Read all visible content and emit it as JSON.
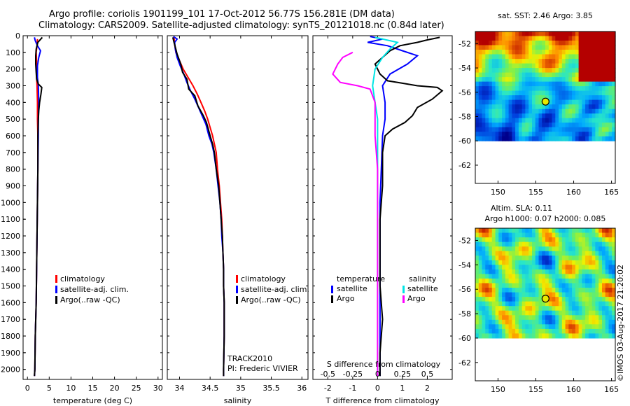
{
  "header": {
    "line1": "Argo profile: coriolis 1901199_101 17-Oct-2012 56.77S 156.281E (DM data)",
    "line2": "Climatology: CARS2009. Satellite-adjusted climatology: synTS_20121018.nc (0.84d later)"
  },
  "colors": {
    "clim": "#ff0000",
    "sat": "#0000ff",
    "argo": "#000000",
    "sat_s": "#00e5e5",
    "argo_s": "#ff00ff"
  },
  "chart_data": [
    {
      "id": "temperature",
      "type": "line",
      "xlabel": "temperature (deg C)",
      "ylabel": "",
      "xlim": [
        -1,
        31
      ],
      "ylim": [
        2060,
        0
      ],
      "xticks": [
        0,
        5,
        10,
        15,
        20,
        25,
        30
      ],
      "yticks": [
        0,
        100,
        200,
        300,
        400,
        500,
        600,
        700,
        800,
        900,
        1000,
        1100,
        1200,
        1300,
        1400,
        1500,
        1600,
        1700,
        1800,
        1900,
        2000
      ],
      "legend": {
        "entries": [
          "climatology",
          "satellite-adj. clim.",
          "Argo(..raw -QC)"
        ]
      },
      "series": [
        {
          "name": "climatology",
          "color": "clim",
          "points": [
            [
              2.3,
              20
            ],
            [
              2.2,
              60
            ],
            [
              2.0,
              100
            ],
            [
              2.1,
              150
            ],
            [
              2.0,
              200
            ],
            [
              2.1,
              250
            ],
            [
              2.2,
              300
            ],
            [
              2.3,
              400
            ],
            [
              2.3,
              500
            ],
            [
              2.4,
              600
            ],
            [
              2.4,
              800
            ],
            [
              2.3,
              1000
            ],
            [
              2.2,
              1200
            ],
            [
              2.1,
              1400
            ],
            [
              2.0,
              1600
            ],
            [
              1.8,
              1800
            ],
            [
              1.7,
              2000
            ],
            [
              1.6,
              2040
            ]
          ]
        },
        {
          "name": "satellite-adj. clim.",
          "color": "sat",
          "points": [
            [
              1.6,
              10
            ],
            [
              1.8,
              30
            ],
            [
              2.3,
              60
            ],
            [
              3.0,
              90
            ],
            [
              2.6,
              130
            ],
            [
              2.3,
              180
            ],
            [
              2.3,
              250
            ],
            [
              2.5,
              300
            ],
            [
              2.6,
              400
            ],
            [
              2.5,
              500
            ],
            [
              2.5,
              600
            ],
            [
              2.4,
              800
            ],
            [
              2.3,
              1000
            ],
            [
              2.2,
              1200
            ],
            [
              2.1,
              1400
            ],
            [
              2.0,
              1600
            ],
            [
              1.8,
              1800
            ],
            [
              1.7,
              2000
            ],
            [
              1.6,
              2040
            ]
          ]
        },
        {
          "name": "Argo",
          "color": "argo",
          "points": [
            [
              3.4,
              10
            ],
            [
              2.4,
              40
            ],
            [
              2.0,
              80
            ],
            [
              1.9,
              120
            ],
            [
              1.9,
              170
            ],
            [
              2.0,
              220
            ],
            [
              2.1,
              260
            ],
            [
              2.5,
              290
            ],
            [
              3.3,
              310
            ],
            [
              3.1,
              350
            ],
            [
              2.8,
              400
            ],
            [
              2.6,
              450
            ],
            [
              2.5,
              500
            ],
            [
              2.4,
              600
            ],
            [
              2.4,
              800
            ],
            [
              2.3,
              1000
            ],
            [
              2.2,
              1200
            ],
            [
              2.1,
              1400
            ],
            [
              2.0,
              1600
            ],
            [
              1.8,
              1800
            ],
            [
              1.7,
              2000
            ],
            [
              1.6,
              2040
            ]
          ]
        }
      ]
    },
    {
      "id": "salinity",
      "type": "line",
      "xlabel": "salinity",
      "ylabel": "",
      "xlim": [
        33.8,
        36.1
      ],
      "ylim": [
        2060,
        0
      ],
      "xticks": [
        34,
        34.5,
        35,
        35.5,
        36
      ],
      "xtick_labels": [
        "34",
        "34.5",
        "35",
        "35.5",
        "36"
      ],
      "legend": {
        "entries": [
          "climatology",
          "satellite-adj. clim.",
          "Argo(..raw -QC)"
        ]
      },
      "annotation": [
        "TRACK2010",
        "PI: Frederic VIVIER"
      ],
      "series": [
        {
          "name": "climatology",
          "color": "clim",
          "points": [
            [
              33.91,
              10
            ],
            [
              33.92,
              50
            ],
            [
              33.94,
              100
            ],
            [
              34.0,
              150
            ],
            [
              34.06,
              200
            ],
            [
              34.14,
              250
            ],
            [
              34.22,
              300
            ],
            [
              34.29,
              350
            ],
            [
              34.35,
              400
            ],
            [
              34.41,
              450
            ],
            [
              34.46,
              500
            ],
            [
              34.5,
              550
            ],
            [
              34.54,
              600
            ],
            [
              34.57,
              650
            ],
            [
              34.6,
              700
            ],
            [
              34.62,
              800
            ],
            [
              34.65,
              900
            ],
            [
              34.67,
              1000
            ],
            [
              34.69,
              1100
            ],
            [
              34.7,
              1200
            ],
            [
              34.71,
              1300
            ],
            [
              34.72,
              1400
            ],
            [
              34.72,
              1500
            ],
            [
              34.73,
              1600
            ],
            [
              34.73,
              1800
            ],
            [
              34.72,
              2000
            ],
            [
              34.72,
              2040
            ]
          ]
        },
        {
          "name": "satellite-adj. clim.",
          "color": "sat",
          "points": [
            [
              33.9,
              5
            ],
            [
              33.96,
              20
            ],
            [
              33.92,
              40
            ],
            [
              33.93,
              80
            ],
            [
              33.96,
              130
            ],
            [
              34.01,
              180
            ],
            [
              34.07,
              230
            ],
            [
              34.12,
              280
            ],
            [
              34.18,
              330
            ],
            [
              34.25,
              380
            ],
            [
              34.31,
              430
            ],
            [
              34.37,
              480
            ],
            [
              34.43,
              530
            ],
            [
              34.48,
              600
            ],
            [
              34.53,
              650
            ],
            [
              34.56,
              700
            ],
            [
              34.6,
              800
            ],
            [
              34.63,
              900
            ],
            [
              34.66,
              1000
            ],
            [
              34.68,
              1100
            ],
            [
              34.69,
              1200
            ],
            [
              34.71,
              1300
            ],
            [
              34.72,
              1400
            ],
            [
              34.72,
              1500
            ],
            [
              34.73,
              1600
            ],
            [
              34.73,
              1800
            ],
            [
              34.72,
              2000
            ],
            [
              34.72,
              2040
            ]
          ]
        },
        {
          "name": "Argo",
          "color": "argo",
          "points": [
            [
              33.89,
              10
            ],
            [
              33.91,
              40
            ],
            [
              33.94,
              80
            ],
            [
              33.96,
              110
            ],
            [
              34.02,
              170
            ],
            [
              34.05,
              220
            ],
            [
              34.12,
              260
            ],
            [
              34.15,
              320
            ],
            [
              34.25,
              360
            ],
            [
              34.3,
              420
            ],
            [
              34.33,
              440
            ],
            [
              34.39,
              480
            ],
            [
              34.44,
              520
            ],
            [
              34.47,
              560
            ],
            [
              34.5,
              600
            ],
            [
              34.54,
              650
            ],
            [
              34.57,
              700
            ],
            [
              34.6,
              800
            ],
            [
              34.64,
              900
            ],
            [
              34.66,
              1000
            ],
            [
              34.68,
              1100
            ],
            [
              34.7,
              1200
            ],
            [
              34.71,
              1300
            ],
            [
              34.72,
              1400
            ],
            [
              34.72,
              1500
            ],
            [
              34.73,
              1600
            ],
            [
              34.73,
              1800
            ],
            [
              34.72,
              2000
            ],
            [
              34.72,
              2040
            ]
          ]
        }
      ]
    },
    {
      "id": "difference",
      "type": "line",
      "xlabel": "T difference from climatology",
      "xlabel2": "S difference from climatology",
      "xlim": [
        -2.6,
        3
      ],
      "ylim": [
        2060,
        0
      ],
      "xticks": [
        -2,
        -1,
        0,
        1,
        2
      ],
      "xticks2": [
        -2,
        -1,
        0,
        1,
        2
      ],
      "xtick2_labels": [
        "-0.5",
        "-0.25",
        "0",
        "0.25",
        "0.5"
      ],
      "legend": {
        "temperature": [
          "temperature",
          "satellite",
          "Argo"
        ],
        "salinity": [
          "salinity",
          "satellite",
          "Argo"
        ]
      },
      "series": [
        {
          "name": "satellite",
          "group": "temperature",
          "color": "sat",
          "points": [
            [
              -0.3,
              5
            ],
            [
              0.2,
              20
            ],
            [
              -0.4,
              40
            ],
            [
              0.4,
              60
            ],
            [
              1.0,
              90
            ],
            [
              1.6,
              120
            ],
            [
              1.2,
              170
            ],
            [
              0.5,
              230
            ],
            [
              0.2,
              300
            ],
            [
              0.3,
              400
            ],
            [
              0.3,
              500
            ],
            [
              0.2,
              600
            ],
            [
              0.15,
              800
            ],
            [
              0.1,
              1000
            ],
            [
              0.1,
              1200
            ],
            [
              0.1,
              1400
            ],
            [
              0.1,
              1600
            ],
            [
              0.1,
              1800
            ],
            [
              0.1,
              2000
            ],
            [
              0.1,
              2040
            ]
          ]
        },
        {
          "name": "Argo",
          "group": "temperature",
          "color": "argo",
          "points": [
            [
              2.5,
              10
            ],
            [
              2.0,
              25
            ],
            [
              1.6,
              40
            ],
            [
              0.9,
              60
            ],
            [
              0.5,
              90
            ],
            [
              0.2,
              130
            ],
            [
              -0.1,
              170
            ],
            [
              0.1,
              230
            ],
            [
              0.4,
              270
            ],
            [
              1.0,
              285
            ],
            [
              1.6,
              300
            ],
            [
              2.4,
              310
            ],
            [
              2.6,
              330
            ],
            [
              2.2,
              380
            ],
            [
              1.6,
              430
            ],
            [
              1.4,
              480
            ],
            [
              1.1,
              520
            ],
            [
              0.6,
              560
            ],
            [
              0.3,
              600
            ],
            [
              0.2,
              700
            ],
            [
              0.2,
              900
            ],
            [
              0.1,
              1100
            ],
            [
              0.1,
              1300
            ],
            [
              0.1,
              1500
            ],
            [
              0.2,
              1700
            ],
            [
              0.1,
              1900
            ],
            [
              0.1,
              2040
            ]
          ]
        },
        {
          "name": "satellite",
          "group": "salinity",
          "color": "sat_s",
          "points": [
            [
              -0.1,
              10
            ],
            [
              0.8,
              40
            ],
            [
              0.5,
              80
            ],
            [
              0.2,
              130
            ],
            [
              -0.1,
              200
            ],
            [
              -0.2,
              300
            ],
            [
              -0.1,
              400
            ],
            [
              0.0,
              500
            ],
            [
              0.0,
              700
            ],
            [
              0.0,
              900
            ],
            [
              0.0,
              1100
            ],
            [
              0.0,
              1300
            ],
            [
              0.0,
              1500
            ],
            [
              0.0,
              1700
            ],
            [
              0.0,
              1900
            ],
            [
              0.0,
              2040
            ]
          ]
        },
        {
          "name": "Argo",
          "group": "salinity",
          "color": "argo_s",
          "points": [
            [
              -1.0,
              100
            ],
            [
              -1.4,
              130
            ],
            [
              -1.6,
              170
            ],
            [
              -1.8,
              230
            ],
            [
              -1.5,
              280
            ],
            [
              -0.8,
              300
            ],
            [
              -0.3,
              320
            ],
            [
              -0.1,
              400
            ],
            [
              -0.1,
              500
            ],
            [
              -0.1,
              600
            ],
            [
              0.0,
              800
            ],
            [
              0.0,
              1000
            ],
            [
              0.0,
              1200
            ],
            [
              0.0,
              1400
            ],
            [
              0.0,
              1600
            ],
            [
              0.0,
              1800
            ],
            [
              0.0,
              2040
            ]
          ]
        }
      ]
    },
    {
      "id": "sst_map",
      "type": "heatmap",
      "title": "sat. SST: 2.46  Argo: 3.85",
      "xlim": [
        147,
        165.5
      ],
      "ylim": [
        -63.5,
        -51
      ],
      "xticks": [
        150,
        155,
        160,
        165
      ],
      "yticks": [
        -52,
        -54,
        -56,
        -58,
        -60,
        -62
      ],
      "marker": {
        "lon": 156.281,
        "lat": -56.77
      }
    },
    {
      "id": "sla_map",
      "type": "heatmap",
      "title": "Altim. SLA: 0.11",
      "subtitle": "Argo h1000: 0.07  h2000: 0.085",
      "xlim": [
        147,
        165.5
      ],
      "ylim": [
        -63.5,
        -51
      ],
      "xticks": [
        150,
        155,
        160,
        165
      ],
      "yticks": [
        -52,
        -54,
        -56,
        -58,
        -60,
        -62
      ],
      "marker": {
        "lon": 156.281,
        "lat": -56.77
      }
    }
  ],
  "credit": "©IMOS 03-Aug-2017 21:20:02"
}
